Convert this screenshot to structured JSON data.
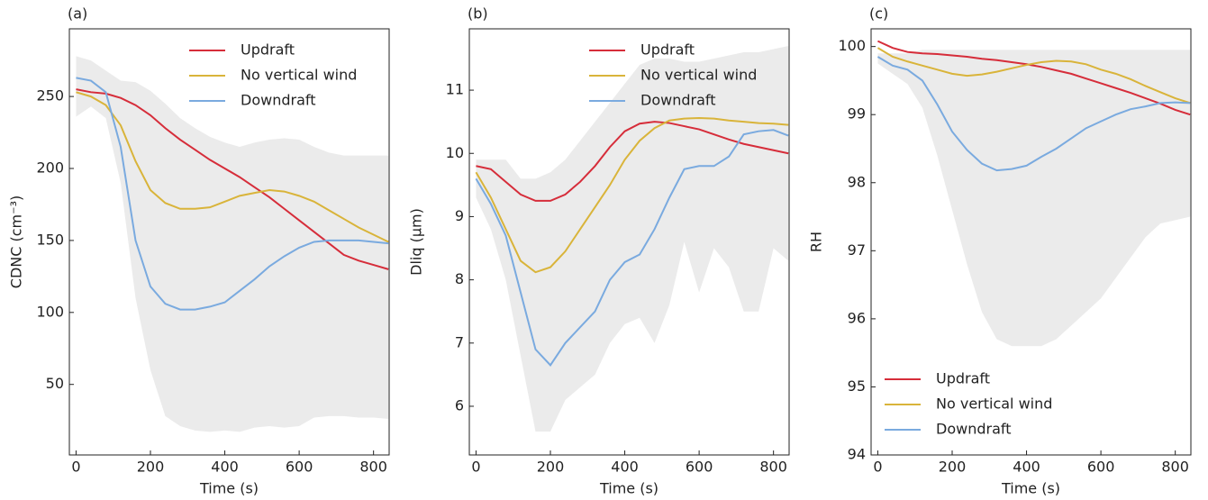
{
  "chart_data": [
    {
      "type": "line",
      "panel": "(a)",
      "xlabel": "Time (s)",
      "ylabel": "CDNC (cm⁻³)",
      "x": [
        0,
        40,
        80,
        120,
        160,
        200,
        240,
        280,
        320,
        360,
        400,
        440,
        480,
        520,
        560,
        600,
        640,
        680,
        720,
        760,
        800,
        840
      ],
      "xlim": [
        -18,
        842
      ],
      "xticks": [
        0,
        200,
        400,
        600,
        800
      ],
      "ylim": [
        1,
        297
      ],
      "yticks": [
        50,
        100,
        150,
        200,
        250
      ],
      "legend": "upper right",
      "band": {
        "color": "#ebebeb",
        "upper": [
          278,
          275,
          268,
          261,
          260,
          254,
          245,
          235,
          228,
          222,
          218,
          215,
          218,
          220,
          221,
          220,
          215,
          211,
          209,
          209,
          209,
          209
        ],
        "lower": [
          236,
          243,
          235,
          190,
          110,
          60,
          28,
          21,
          18,
          17,
          18,
          17,
          20,
          21,
          20,
          21,
          27,
          28,
          28,
          27,
          27,
          26
        ]
      },
      "series": [
        {
          "name": "Updraft",
          "color": "#d62d3a",
          "values": [
            255,
            253,
            252,
            249,
            244,
            237,
            228,
            220,
            213,
            206,
            200,
            194,
            187,
            180,
            172,
            164,
            156,
            148,
            140,
            136,
            133,
            130
          ]
        },
        {
          "name": "No vertical wind",
          "color": "#d9b43a",
          "values": [
            253,
            250,
            244,
            230,
            205,
            185,
            176,
            172,
            172,
            173,
            177,
            181,
            183,
            185,
            184,
            181,
            177,
            171,
            165,
            159,
            154,
            149
          ]
        },
        {
          "name": "Downdraft",
          "color": "#7aaadf",
          "values": [
            263,
            261,
            253,
            215,
            150,
            118,
            106,
            102,
            102,
            104,
            107,
            115,
            123,
            132,
            139,
            145,
            149,
            150,
            150,
            150,
            149,
            148
          ]
        }
      ]
    },
    {
      "type": "line",
      "panel": "(b)",
      "xlabel": "Time (s)",
      "ylabel": "Dliq (μm)",
      "x": [
        0,
        40,
        80,
        120,
        160,
        200,
        240,
        280,
        320,
        360,
        400,
        440,
        480,
        520,
        560,
        600,
        640,
        680,
        720,
        760,
        800,
        840
      ],
      "xlim": [
        -18,
        842
      ],
      "xticks": [
        0,
        200,
        400,
        600,
        800
      ],
      "ylim": [
        5.23,
        11.97
      ],
      "yticks": [
        6,
        7,
        8,
        9,
        10,
        11
      ],
      "legend": "upper right",
      "band": {
        "color": "#ebebeb",
        "upper": [
          9.9,
          9.9,
          9.9,
          9.6,
          9.6,
          9.7,
          9.9,
          10.2,
          10.5,
          10.8,
          11.1,
          11.4,
          11.5,
          11.5,
          11.45,
          11.45,
          11.5,
          11.55,
          11.6,
          11.6,
          11.65,
          11.7
        ],
        "lower": [
          9.3,
          8.8,
          8.0,
          6.8,
          5.6,
          5.6,
          6.1,
          6.3,
          6.5,
          7.0,
          7.3,
          7.4,
          7.0,
          7.6,
          8.6,
          7.8,
          8.5,
          8.2,
          7.5,
          7.5,
          8.5,
          8.3
        ]
      },
      "series": [
        {
          "name": "Updraft",
          "color": "#d62d3a",
          "values": [
            9.8,
            9.75,
            9.55,
            9.35,
            9.25,
            9.25,
            9.35,
            9.55,
            9.8,
            10.1,
            10.35,
            10.47,
            10.5,
            10.48,
            10.43,
            10.38,
            10.3,
            10.22,
            10.15,
            10.1,
            10.05,
            10.0
          ]
        },
        {
          "name": "No vertical wind",
          "color": "#d9b43a",
          "values": [
            9.7,
            9.3,
            8.8,
            8.3,
            8.12,
            8.2,
            8.45,
            8.8,
            9.15,
            9.5,
            9.9,
            10.2,
            10.4,
            10.52,
            10.55,
            10.56,
            10.55,
            10.52,
            10.5,
            10.48,
            10.47,
            10.45
          ]
        },
        {
          "name": "Downdraft",
          "color": "#7aaadf",
          "values": [
            9.6,
            9.2,
            8.7,
            7.8,
            6.9,
            6.65,
            7.0,
            7.25,
            7.5,
            8.0,
            8.28,
            8.4,
            8.8,
            9.3,
            9.75,
            9.8,
            9.8,
            9.95,
            10.3,
            10.35,
            10.37,
            10.28
          ]
        }
      ]
    },
    {
      "type": "line",
      "panel": "(c)",
      "xlabel": "Time (s)",
      "ylabel": "RH",
      "x": [
        0,
        40,
        80,
        120,
        160,
        200,
        240,
        280,
        320,
        360,
        400,
        440,
        480,
        520,
        560,
        600,
        640,
        680,
        720,
        760,
        800,
        840
      ],
      "xlim": [
        -18,
        842
      ],
      "xticks": [
        0,
        200,
        400,
        600,
        800
      ],
      "ylim": [
        94,
        100.26
      ],
      "yticks": [
        94,
        95,
        96,
        97,
        98,
        99,
        100
      ],
      "legend": "lower left",
      "band": {
        "color": "#ebebeb",
        "upper": [
          99.9,
          99.9,
          99.9,
          99.95,
          99.95,
          99.95,
          99.95,
          99.95,
          99.95,
          99.95,
          99.95,
          99.95,
          99.95,
          99.95,
          99.95,
          99.95,
          99.95,
          99.95,
          99.95,
          99.95,
          99.95,
          99.95
        ],
        "lower": [
          99.75,
          99.6,
          99.45,
          99.1,
          98.4,
          97.6,
          96.8,
          96.1,
          95.7,
          95.6,
          95.6,
          95.6,
          95.7,
          95.9,
          96.1,
          96.3,
          96.6,
          96.9,
          97.2,
          97.4,
          97.45,
          97.5
        ]
      },
      "series": [
        {
          "name": "Updraft",
          "color": "#d62d3a",
          "values": [
            100.08,
            99.98,
            99.92,
            99.9,
            99.89,
            99.87,
            99.85,
            99.82,
            99.8,
            99.77,
            99.74,
            99.7,
            99.65,
            99.6,
            99.53,
            99.46,
            99.39,
            99.32,
            99.24,
            99.16,
            99.07,
            99.0
          ]
        },
        {
          "name": "No vertical wind",
          "color": "#d9b43a",
          "values": [
            99.98,
            99.85,
            99.78,
            99.72,
            99.66,
            99.6,
            99.57,
            99.59,
            99.63,
            99.68,
            99.73,
            99.77,
            99.79,
            99.78,
            99.74,
            99.66,
            99.6,
            99.52,
            99.42,
            99.33,
            99.24,
            99.17
          ]
        },
        {
          "name": "Downdraft",
          "color": "#7aaadf",
          "values": [
            99.85,
            99.72,
            99.66,
            99.5,
            99.15,
            98.75,
            98.48,
            98.28,
            98.18,
            98.2,
            98.25,
            98.38,
            98.5,
            98.65,
            98.8,
            98.9,
            99.0,
            99.08,
            99.12,
            99.17,
            99.18,
            99.17
          ]
        }
      ]
    }
  ]
}
